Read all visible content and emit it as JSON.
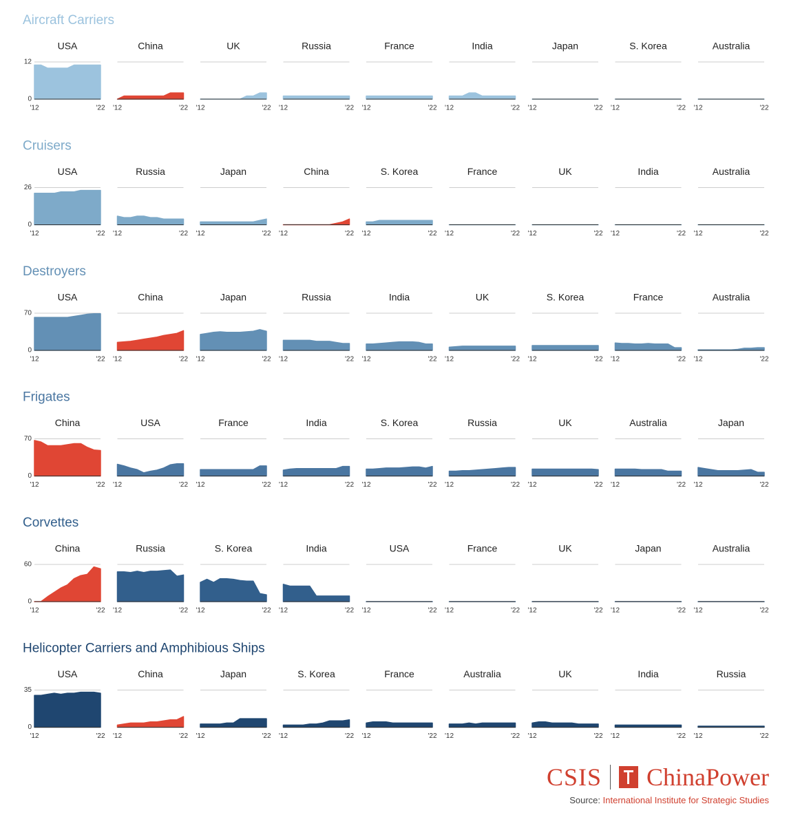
{
  "colors": {
    "china": "#e04634",
    "aircraft_carriers": "#9cc3de",
    "cruisers": "#7eaac9",
    "destroyers": "#6390b5",
    "frigates": "#4a76a1",
    "corvettes": "#325f8c",
    "helicopter": "#1f4670",
    "brand": "#d0402f"
  },
  "chart_data": [
    {
      "type": "area",
      "title": "Aircraft Carriers",
      "color_key": "aircraft_carriers",
      "ylim": [
        0,
        12
      ],
      "ytick_labels": [
        "12",
        "0"
      ],
      "x": [
        2012,
        2013,
        2014,
        2015,
        2016,
        2017,
        2018,
        2019,
        2020,
        2021,
        2022
      ],
      "xtick_labels": [
        "'12",
        "'22"
      ],
      "series": [
        {
          "name": "USA",
          "values": [
            11,
            11,
            10,
            10,
            10,
            10,
            11,
            11,
            11,
            11,
            11
          ]
        },
        {
          "name": "China",
          "values": [
            0,
            1,
            1,
            1,
            1,
            1,
            1,
            1,
            2,
            2,
            2
          ]
        },
        {
          "name": "UK",
          "values": [
            0,
            0,
            0,
            0,
            0,
            0,
            0,
            1,
            1,
            2,
            2
          ]
        },
        {
          "name": "Russia",
          "values": [
            1,
            1,
            1,
            1,
            1,
            1,
            1,
            1,
            1,
            1,
            1
          ]
        },
        {
          "name": "France",
          "values": [
            1,
            1,
            1,
            1,
            1,
            1,
            1,
            1,
            1,
            1,
            1
          ]
        },
        {
          "name": "India",
          "values": [
            1,
            1,
            1,
            2,
            2,
            1,
            1,
            1,
            1,
            1,
            1
          ]
        },
        {
          "name": "Japan",
          "values": [
            0,
            0,
            0,
            0,
            0,
            0,
            0,
            0,
            0,
            0,
            0
          ]
        },
        {
          "name": "S. Korea",
          "values": [
            0,
            0,
            0,
            0,
            0,
            0,
            0,
            0,
            0,
            0,
            0
          ]
        },
        {
          "name": "Australia",
          "values": [
            0,
            0,
            0,
            0,
            0,
            0,
            0,
            0,
            0,
            0,
            0
          ]
        }
      ]
    },
    {
      "type": "area",
      "title": "Cruisers",
      "color_key": "cruisers",
      "ylim": [
        0,
        26
      ],
      "ytick_labels": [
        "26",
        "0"
      ],
      "x": [
        2012,
        2013,
        2014,
        2015,
        2016,
        2017,
        2018,
        2019,
        2020,
        2021,
        2022
      ],
      "xtick_labels": [
        "'12",
        "'22"
      ],
      "series": [
        {
          "name": "USA",
          "values": [
            22,
            22,
            22,
            22,
            23,
            23,
            23,
            24,
            24,
            24,
            24
          ]
        },
        {
          "name": "Russia",
          "values": [
            6,
            5,
            5,
            6,
            6,
            5,
            5,
            4,
            4,
            4,
            4
          ]
        },
        {
          "name": "Japan",
          "values": [
            2,
            2,
            2,
            2,
            2,
            2,
            2,
            2,
            2,
            3,
            4
          ]
        },
        {
          "name": "China",
          "values": [
            0,
            0,
            0,
            0,
            0,
            0,
            0,
            0,
            1,
            2,
            4
          ]
        },
        {
          "name": "S. Korea",
          "values": [
            2,
            2,
            3,
            3,
            3,
            3,
            3,
            3,
            3,
            3,
            3
          ]
        },
        {
          "name": "France",
          "values": [
            0,
            0,
            0,
            0,
            0,
            0,
            0,
            0,
            0,
            0,
            0
          ]
        },
        {
          "name": "UK",
          "values": [
            0,
            0,
            0,
            0,
            0,
            0,
            0,
            0,
            0,
            0,
            0
          ]
        },
        {
          "name": "India",
          "values": [
            0,
            0,
            0,
            0,
            0,
            0,
            0,
            0,
            0,
            0,
            0
          ]
        },
        {
          "name": "Australia",
          "values": [
            0,
            0,
            0,
            0,
            0,
            0,
            0,
            0,
            0,
            0,
            0
          ]
        }
      ]
    },
    {
      "type": "area",
      "title": "Destroyers",
      "color_key": "destroyers",
      "ylim": [
        0,
        70
      ],
      "ytick_labels": [
        "70",
        "0"
      ],
      "x": [
        2012,
        2013,
        2014,
        2015,
        2016,
        2017,
        2018,
        2019,
        2020,
        2021,
        2022
      ],
      "xtick_labels": [
        "'12",
        "'22"
      ],
      "series": [
        {
          "name": "USA",
          "values": [
            62,
            62,
            62,
            62,
            62,
            62,
            64,
            66,
            68,
            69,
            69
          ]
        },
        {
          "name": "China",
          "values": [
            15,
            16,
            17,
            19,
            21,
            23,
            25,
            28,
            30,
            32,
            37
          ]
        },
        {
          "name": "Japan",
          "values": [
            30,
            32,
            34,
            35,
            34,
            34,
            34,
            35,
            36,
            39,
            36
          ]
        },
        {
          "name": "Russia",
          "values": [
            19,
            19,
            19,
            19,
            19,
            17,
            17,
            17,
            15,
            13,
            13
          ]
        },
        {
          "name": "India",
          "values": [
            12,
            12,
            13,
            14,
            15,
            16,
            16,
            16,
            15,
            12,
            12
          ]
        },
        {
          "name": "UK",
          "values": [
            6,
            7,
            8,
            8,
            8,
            8,
            8,
            8,
            8,
            8,
            8
          ]
        },
        {
          "name": "S. Korea",
          "values": [
            9,
            9,
            9,
            9,
            9,
            9,
            9,
            9,
            9,
            9,
            9
          ]
        },
        {
          "name": "France",
          "values": [
            14,
            13,
            13,
            12,
            12,
            13,
            12,
            12,
            12,
            5,
            5
          ]
        },
        {
          "name": "Australia",
          "values": [
            1,
            1,
            1,
            1,
            1,
            1,
            2,
            4,
            4,
            5,
            5
          ]
        }
      ]
    },
    {
      "type": "area",
      "title": "Frigates",
      "color_key": "frigates",
      "ylim": [
        0,
        70
      ],
      "ytick_labels": [
        "70",
        "0"
      ],
      "x": [
        2012,
        2013,
        2014,
        2015,
        2016,
        2017,
        2018,
        2019,
        2020,
        2021,
        2022
      ],
      "xtick_labels": [
        "'12",
        "'22"
      ],
      "series": [
        {
          "name": "China",
          "values": [
            67,
            64,
            57,
            57,
            57,
            59,
            61,
            61,
            54,
            49,
            48
          ]
        },
        {
          "name": "USA",
          "values": [
            22,
            19,
            15,
            12,
            6,
            9,
            11,
            15,
            21,
            23,
            23
          ]
        },
        {
          "name": "France",
          "values": [
            12,
            12,
            12,
            12,
            12,
            12,
            12,
            12,
            12,
            19,
            19
          ]
        },
        {
          "name": "India",
          "values": [
            11,
            13,
            14,
            14,
            14,
            14,
            14,
            14,
            14,
            18,
            18
          ]
        },
        {
          "name": "S. Korea",
          "values": [
            13,
            13,
            14,
            15,
            15,
            15,
            16,
            17,
            17,
            15,
            18
          ]
        },
        {
          "name": "Russia",
          "values": [
            9,
            9,
            10,
            10,
            11,
            12,
            13,
            14,
            15,
            16,
            16
          ]
        },
        {
          "name": "UK",
          "values": [
            13,
            13,
            13,
            13,
            13,
            13,
            13,
            13,
            13,
            13,
            12
          ]
        },
        {
          "name": "Australia",
          "values": [
            13,
            13,
            13,
            13,
            12,
            12,
            12,
            12,
            9,
            9,
            9
          ]
        },
        {
          "name": "Japan",
          "values": [
            16,
            14,
            12,
            10,
            10,
            10,
            10,
            11,
            12,
            7,
            7
          ]
        }
      ]
    },
    {
      "type": "area",
      "title": "Corvettes",
      "color_key": "corvettes",
      "ylim": [
        0,
        60
      ],
      "ytick_labels": [
        "60",
        "0"
      ],
      "x": [
        2012,
        2013,
        2014,
        2015,
        2016,
        2017,
        2018,
        2019,
        2020,
        2021,
        2022
      ],
      "xtick_labels": [
        "'12",
        "'22"
      ],
      "series": [
        {
          "name": "China",
          "values": [
            0,
            0,
            8,
            15,
            22,
            27,
            37,
            42,
            44,
            56,
            53
          ]
        },
        {
          "name": "Russia",
          "values": [
            48,
            48,
            47,
            49,
            47,
            49,
            49,
            50,
            51,
            41,
            43
          ]
        },
        {
          "name": "S. Korea",
          "values": [
            31,
            36,
            31,
            37,
            37,
            36,
            34,
            33,
            33,
            13,
            11
          ]
        },
        {
          "name": "India",
          "values": [
            28,
            25,
            25,
            25,
            25,
            9,
            9,
            9,
            9,
            9,
            9
          ]
        },
        {
          "name": "USA",
          "values": [
            0,
            0,
            0,
            0,
            0,
            0,
            0,
            0,
            0,
            0,
            0
          ]
        },
        {
          "name": "France",
          "values": [
            0,
            0,
            0,
            0,
            0,
            0,
            0,
            0,
            0,
            0,
            0
          ]
        },
        {
          "name": "UK",
          "values": [
            0,
            0,
            0,
            0,
            0,
            0,
            0,
            0,
            0,
            0,
            0
          ]
        },
        {
          "name": "Japan",
          "values": [
            0,
            0,
            0,
            0,
            0,
            0,
            0,
            0,
            0,
            0,
            0
          ]
        },
        {
          "name": "Australia",
          "values": [
            0,
            0,
            0,
            0,
            0,
            0,
            0,
            0,
            0,
            0,
            0
          ]
        }
      ]
    },
    {
      "type": "area",
      "title": "Helicopter Carriers and Amphibious Ships",
      "color_key": "helicopter",
      "ylim": [
        0,
        35
      ],
      "ytick_labels": [
        "35",
        "0"
      ],
      "x": [
        2012,
        2013,
        2014,
        2015,
        2016,
        2017,
        2018,
        2019,
        2020,
        2021,
        2022
      ],
      "xtick_labels": [
        "'12",
        "'22"
      ],
      "series": [
        {
          "name": "USA",
          "values": [
            30,
            30,
            31,
            32,
            31,
            32,
            32,
            33,
            33,
            33,
            32
          ]
        },
        {
          "name": "China",
          "values": [
            2,
            3,
            4,
            4,
            4,
            5,
            5,
            6,
            7,
            7,
            10
          ]
        },
        {
          "name": "Japan",
          "values": [
            3,
            3,
            3,
            3,
            4,
            4,
            8,
            8,
            8,
            8,
            8
          ]
        },
        {
          "name": "S. Korea",
          "values": [
            2,
            2,
            2,
            2,
            3,
            3,
            4,
            6,
            6,
            6,
            7
          ]
        },
        {
          "name": "France",
          "values": [
            4,
            5,
            5,
            5,
            4,
            4,
            4,
            4,
            4,
            4,
            4
          ]
        },
        {
          "name": "Australia",
          "values": [
            3,
            3,
            3,
            4,
            3,
            4,
            4,
            4,
            4,
            4,
            4
          ]
        },
        {
          "name": "UK",
          "values": [
            4,
            5,
            5,
            4,
            4,
            4,
            4,
            3,
            3,
            3,
            3
          ]
        },
        {
          "name": "India",
          "values": [
            2,
            2,
            2,
            2,
            2,
            2,
            2,
            2,
            2,
            2,
            2
          ]
        },
        {
          "name": "Russia",
          "values": [
            1,
            1,
            1,
            1,
            1,
            1,
            1,
            1,
            1,
            1,
            1
          ]
        }
      ]
    }
  ],
  "brand": {
    "csis": "CSIS",
    "chinapower": "ChinaPower"
  },
  "source": {
    "label": "Source:",
    "value": "International Institute for Strategic Studies"
  }
}
